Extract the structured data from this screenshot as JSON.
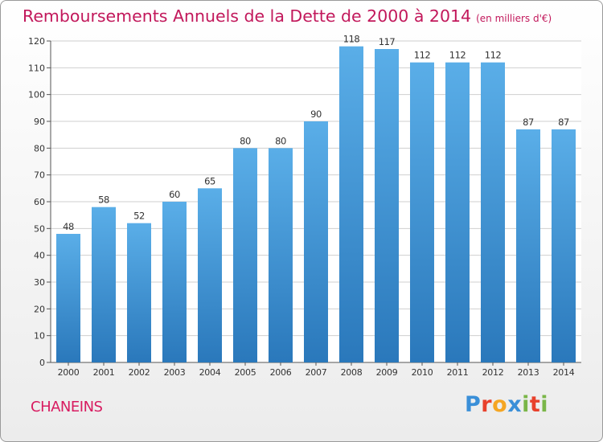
{
  "title": "Remboursements Annuels de la Dette de 2000 à 2014",
  "subtitle": "(en milliers d'€)",
  "commune": "CHANEINS",
  "logo": {
    "letters": [
      "P",
      "r",
      "o",
      "x",
      "i",
      "t",
      "i"
    ],
    "colors": [
      "#3a8fd8",
      "#e8412c",
      "#f5a623",
      "#3a8fd8",
      "#7ab648",
      "#e8412c",
      "#7ab648"
    ]
  },
  "colors": {
    "title": "#c2185b",
    "bar_top": "#5aaee8",
    "bar_bottom": "#2a78bb",
    "grid": "#cfcfcf"
  },
  "chart_data": {
    "type": "bar",
    "categories": [
      "2000",
      "2001",
      "2002",
      "2003",
      "2004",
      "2005",
      "2006",
      "2007",
      "2008",
      "2009",
      "2010",
      "2011",
      "2012",
      "2013",
      "2014"
    ],
    "values": [
      48,
      58,
      52,
      60,
      65,
      80,
      80,
      90,
      118,
      117,
      112,
      112,
      112,
      87,
      87
    ],
    "ylim": [
      0,
      120
    ],
    "yticks": [
      0,
      10,
      20,
      30,
      40,
      50,
      60,
      70,
      80,
      90,
      100,
      110,
      120
    ],
    "grid": true,
    "data_labels": true
  }
}
